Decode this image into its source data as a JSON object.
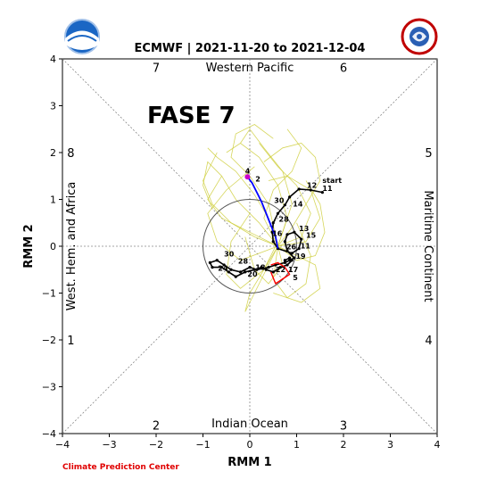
{
  "logos": {
    "noaa_text": "NOAA",
    "nws_text": "NATIONAL WEATHER SERVICE"
  },
  "credit": "Climate Prediction Center",
  "annotation": "FASE 7",
  "chart_data": {
    "type": "line",
    "title": "ECMWF | 2021-11-20 to 2021-12-04",
    "xlabel": "RMM 1",
    "ylabel": "RMM 2",
    "xlim": [
      -4,
      4
    ],
    "ylim": [
      -4,
      4
    ],
    "xticks": [
      -4,
      -3,
      -2,
      -1,
      0,
      1,
      2,
      3,
      4
    ],
    "yticks": [
      -4,
      -3,
      -2,
      -1,
      0,
      1,
      2,
      3,
      4
    ],
    "xtick_labels": [
      "−4",
      "−3",
      "−2",
      "−1",
      "0",
      "1",
      "2",
      "3",
      "4"
    ],
    "ytick_labels": [
      "−4",
      "−3",
      "−2",
      "−1",
      "0",
      "1",
      "2",
      "3",
      "4"
    ],
    "unit_circle_radius": 1,
    "phase_numbers": [
      {
        "label": "7",
        "x": -2.0,
        "y": 3.82
      },
      {
        "label": "6",
        "x": 2.0,
        "y": 3.82
      },
      {
        "label": "8",
        "x": -3.82,
        "y": 2.0
      },
      {
        "label": "5",
        "x": 3.82,
        "y": 2.0
      },
      {
        "label": "1",
        "x": -3.82,
        "y": -2.0
      },
      {
        "label": "4",
        "x": 3.82,
        "y": -2.0
      },
      {
        "label": "2",
        "x": -2.0,
        "y": -3.82
      },
      {
        "label": "3",
        "x": 2.0,
        "y": -3.82
      }
    ],
    "regions": {
      "top": "Western Pacific",
      "bottom": "Indian Ocean",
      "left": "West. Hem. and Africa",
      "right": "Maritime Continent"
    },
    "colors": {
      "observed": "#000000",
      "forecast_mean": "#0000ff",
      "ensemble": "#cccc33",
      "highlight": "#ff0000",
      "start_marker": "#cc00cc"
    },
    "series": [
      {
        "name": "observed",
        "x": [
          1.55,
          1.3,
          1.05,
          0.85,
          0.75,
          0.6,
          0.5,
          0.48,
          0.5,
          0.6,
          0.9,
          1.05,
          1.1,
          0.95,
          0.8,
          0.75,
          0.8,
          0.95,
          0.85,
          0.75,
          0.55,
          0.4,
          0.15,
          0.0,
          -0.2,
          -0.4,
          -0.55,
          -0.7,
          -0.85,
          -0.8,
          -0.6,
          -0.45,
          -0.3,
          -0.1,
          0.1,
          0.25,
          0.35,
          0.5,
          0.65,
          0.8,
          0.9,
          0.85,
          0.75
        ],
        "y": [
          1.15,
          1.2,
          1.22,
          1.05,
          0.88,
          0.7,
          0.5,
          0.3,
          0.1,
          -0.05,
          -0.15,
          -0.05,
          0.15,
          0.3,
          0.25,
          0.1,
          -0.1,
          -0.25,
          -0.3,
          -0.35,
          -0.4,
          -0.45,
          -0.5,
          -0.45,
          -0.55,
          -0.5,
          -0.4,
          -0.3,
          -0.35,
          -0.45,
          -0.45,
          -0.55,
          -0.65,
          -0.55,
          -0.5,
          -0.45,
          -0.5,
          -0.55,
          -0.45,
          -0.4,
          -0.3,
          -0.25,
          -0.3
        ]
      },
      {
        "name": "forecast mean",
        "x": [
          -0.05,
          0.05,
          0.15,
          0.25,
          0.35,
          0.45,
          0.55,
          0.6
        ],
        "y": [
          1.48,
          1.35,
          1.15,
          0.95,
          0.7,
          0.45,
          0.2,
          -0.05
        ]
      },
      {
        "name": "highlight",
        "x": [
          0.45,
          0.6,
          0.75,
          0.85,
          0.55,
          0.45
        ],
        "y": [
          -0.4,
          -0.35,
          -0.45,
          -0.6,
          -0.8,
          -0.55
        ]
      }
    ],
    "start_marker": {
      "x": -0.05,
      "y": 1.48
    },
    "day_labels": [
      {
        "text": "start",
        "x": 1.55,
        "y": 1.35
      },
      {
        "text": "11",
        "x": 1.55,
        "y": 1.18
      },
      {
        "text": "12",
        "x": 1.22,
        "y": 1.25
      },
      {
        "text": "4",
        "x": -0.1,
        "y": 1.55
      },
      {
        "text": "2",
        "x": 0.12,
        "y": 1.38
      },
      {
        "text": "30",
        "x": 0.52,
        "y": 0.92
      },
      {
        "text": "14",
        "x": 0.92,
        "y": 0.85
      },
      {
        "text": "28",
        "x": 0.62,
        "y": 0.52
      },
      {
        "text": "16",
        "x": 0.48,
        "y": 0.22
      },
      {
        "text": "13",
        "x": 1.05,
        "y": 0.32
      },
      {
        "text": "15",
        "x": 1.2,
        "y": 0.18
      },
      {
        "text": "26",
        "x": 0.78,
        "y": -0.07
      },
      {
        "text": "11",
        "x": 1.08,
        "y": -0.05
      },
      {
        "text": "19",
        "x": 0.98,
        "y": -0.27
      },
      {
        "text": "30",
        "x": -0.55,
        "y": -0.22
      },
      {
        "text": "28",
        "x": -0.25,
        "y": -0.37
      },
      {
        "text": "24",
        "x": -0.68,
        "y": -0.52
      },
      {
        "text": "18",
        "x": 0.12,
        "y": -0.5
      },
      {
        "text": "22",
        "x": 0.55,
        "y": -0.55
      },
      {
        "text": "17",
        "x": 0.82,
        "y": -0.55
      },
      {
        "text": "20",
        "x": -0.05,
        "y": -0.65
      },
      {
        "text": "5",
        "x": 0.92,
        "y": -0.72
      }
    ],
    "ensemble": [
      {
        "x": [
          0.6,
          0.2,
          -0.3,
          -0.6,
          -0.9,
          -1.0,
          -0.8
        ],
        "y": [
          0.0,
          0.5,
          1.0,
          1.5,
          1.8,
          1.3,
          0.8
        ]
      },
      {
        "x": [
          0.6,
          0.9,
          1.2,
          1.5,
          1.4,
          1.1,
          0.7,
          0.3
        ],
        "y": [
          0.0,
          0.4,
          0.9,
          1.4,
          1.9,
          2.2,
          2.1,
          1.8
        ]
      },
      {
        "x": [
          0.6,
          0.4,
          0.1,
          -0.3,
          -0.7,
          -0.9
        ],
        "y": [
          0.0,
          0.6,
          1.1,
          1.6,
          1.9,
          2.1
        ]
      },
      {
        "x": [
          0.6,
          1.0,
          1.4,
          1.6,
          1.5,
          1.2
        ],
        "y": [
          0.0,
          -0.3,
          -0.2,
          0.3,
          0.9,
          1.4
        ]
      },
      {
        "x": [
          0.6,
          0.3,
          -0.2,
          -0.5,
          -0.4,
          0.0
        ],
        "y": [
          0.0,
          -0.5,
          -0.9,
          -0.6,
          0.1,
          0.7
        ]
      },
      {
        "x": [
          0.6,
          0.8,
          0.6,
          0.2,
          -0.2,
          -0.5
        ],
        "y": [
          0.0,
          0.6,
          1.3,
          1.9,
          2.2,
          2.0
        ]
      },
      {
        "x": [
          0.6,
          0.1,
          -0.4,
          -0.8,
          -1.0,
          -0.7
        ],
        "y": [
          0.0,
          0.2,
          0.5,
          0.9,
          1.4,
          2.0
        ]
      },
      {
        "x": [
          0.6,
          1.1,
          1.3,
          1.0,
          0.6,
          0.2
        ],
        "y": [
          0.0,
          0.2,
          0.7,
          1.3,
          1.7,
          2.2
        ]
      },
      {
        "x": [
          0.6,
          0.5,
          0.8,
          1.2,
          1.3,
          1.0
        ],
        "y": [
          0.0,
          -0.7,
          -1.1,
          -0.8,
          -0.2,
          0.5
        ]
      },
      {
        "x": [
          0.6,
          0.2,
          -0.1,
          0.0,
          0.3,
          0.6
        ],
        "y": [
          0.0,
          -0.8,
          -1.4,
          -1.0,
          -0.5,
          0.1
        ]
      },
      {
        "x": [
          0.6,
          0.4,
          0.0,
          -0.4,
          -0.3,
          0.1,
          0.5
        ],
        "y": [
          0.0,
          0.9,
          1.5,
          1.9,
          2.4,
          2.6,
          2.3
        ]
      },
      {
        "x": [
          0.6,
          0.9,
          0.7,
          0.3,
          0.0,
          -0.2
        ],
        "y": [
          0.0,
          0.9,
          1.6,
          2.1,
          2.5,
          2.2
        ]
      },
      {
        "x": [
          0.6,
          1.2,
          1.5,
          1.3,
          0.8,
          0.4
        ],
        "y": [
          0.0,
          0.1,
          0.6,
          1.2,
          1.5,
          1.4
        ]
      },
      {
        "x": [
          0.6,
          0.0,
          -0.6,
          -0.9,
          -0.6
        ],
        "y": [
          0.0,
          0.3,
          0.6,
          1.0,
          1.5
        ]
      },
      {
        "x": [
          0.6,
          0.7,
          0.4,
          0.1,
          -0.1
        ],
        "y": [
          0.0,
          -0.4,
          -0.8,
          -0.5,
          0.2
        ]
      },
      {
        "x": [
          0.6,
          1.4,
          1.5,
          1.1,
          0.5
        ],
        "y": [
          0.0,
          -0.4,
          -0.9,
          -1.2,
          -1.0
        ]
      },
      {
        "x": [
          0.6,
          0.3,
          0.5,
          0.9,
          1.1,
          0.8
        ],
        "y": [
          0.0,
          0.6,
          1.2,
          1.6,
          2.1,
          2.5
        ]
      },
      {
        "x": [
          0.6,
          -0.2,
          -0.7,
          -0.9,
          -0.5,
          0.1
        ],
        "y": [
          0.0,
          -0.3,
          0.1,
          0.7,
          1.2,
          1.7
        ]
      }
    ]
  }
}
